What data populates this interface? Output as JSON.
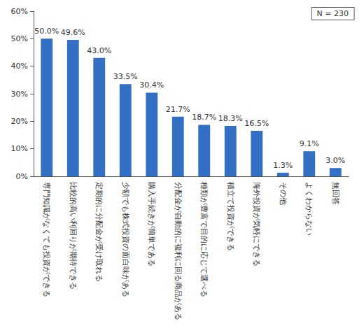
{
  "chart_data": {
    "type": "bar",
    "annotations": [
      "N = 230"
    ],
    "categories": [
      "専門知識がなくても投資ができる",
      "比較的高い利回りが期待できる",
      "定期的に分配金が受け取れる",
      "少額でも株式投資の面白味がある",
      "購入手続きが簡単である",
      "分配金が自動的に複利に回る商品がある",
      "種類が豊富で目的に応じて選べる",
      "積立て投資ができる",
      "海外投資が気軽にできる",
      "その他",
      "よくわからない",
      "無回答"
    ],
    "values": [
      50.0,
      49.6,
      43.0,
      33.5,
      30.4,
      21.7,
      18.7,
      18.3,
      16.5,
      1.3,
      9.1,
      3.0
    ],
    "value_labels": [
      "50.0%",
      "49.6%",
      "43.0%",
      "33.5%",
      "30.4%",
      "21.7%",
      "18.7%",
      "18.3%",
      "16.5%",
      "1.3%",
      "9.1%",
      "3.0%"
    ],
    "color": "#3370c4",
    "ylim": [
      0,
      60
    ],
    "yticks": [
      {
        "value": 0,
        "label": "0%"
      },
      {
        "value": 10,
        "label": "10%"
      },
      {
        "value": 20,
        "label": "20%"
      },
      {
        "value": 30,
        "label": "30%"
      },
      {
        "value": 40,
        "label": "40%"
      },
      {
        "value": 50,
        "label": "50%"
      },
      {
        "value": 60,
        "label": "60%"
      }
    ],
    "grid": false,
    "data_labels": true
  }
}
